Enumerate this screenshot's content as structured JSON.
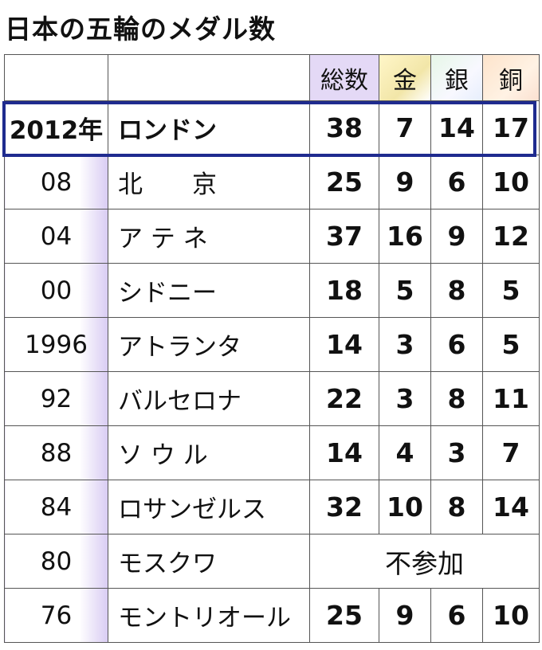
{
  "title": "日本の五輪のメダル数",
  "table": {
    "header": [
      "総数",
      "金",
      "銀",
      "銅"
    ],
    "rows": [
      [
        "2012年",
        "ロンドン",
        "38",
        "7",
        "14",
        "17"
      ],
      [
        "08",
        "北　　京",
        "25",
        "9",
        "6",
        "10"
      ],
      [
        "04",
        "ア テ ネ",
        "37",
        "16",
        "9",
        "12"
      ],
      [
        "00",
        "シドニー",
        "18",
        "5",
        "8",
        "5"
      ],
      [
        "1996",
        "アトランタ",
        "14",
        "3",
        "6",
        "5"
      ],
      [
        "92",
        "バルセロナ",
        "22",
        "3",
        "8",
        "11"
      ],
      [
        "88",
        "ソ ウ ル",
        "14",
        "4",
        "3",
        "7"
      ],
      [
        "84",
        "ロサンゼルス",
        "32",
        "10",
        "8",
        "14"
      ],
      [
        "80",
        "モスクワ",
        "不参加"
      ],
      [
        "76",
        "モントリオール",
        "25",
        "9",
        "6",
        "10"
      ]
    ]
  }
}
